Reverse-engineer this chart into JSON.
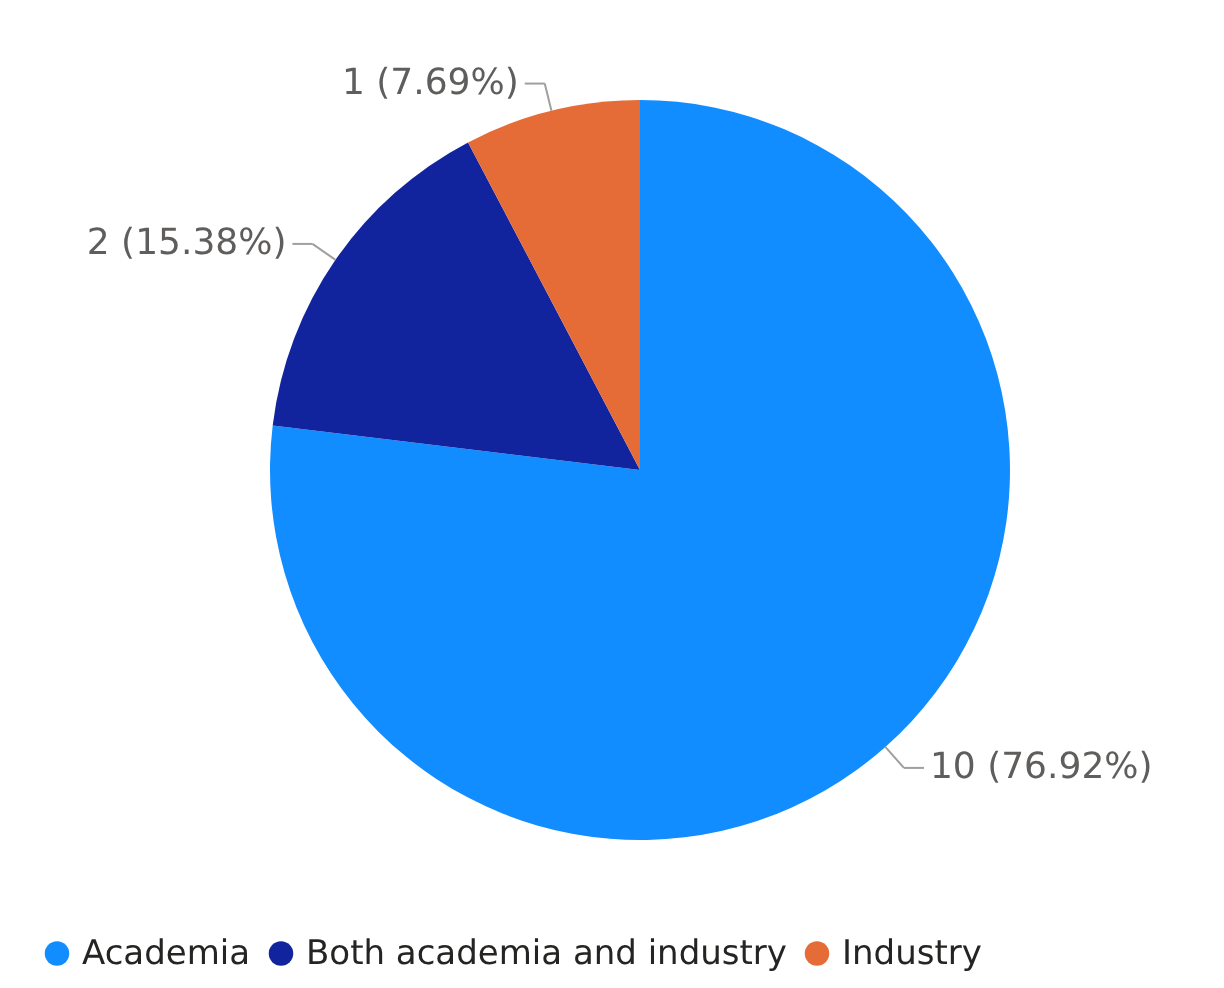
{
  "chart_data": {
    "type": "pie",
    "categories": [
      "Academia",
      "Both academia and industry",
      "Industry"
    ],
    "values": [
      10,
      2,
      1
    ],
    "colors": [
      "#118dff",
      "#12239e",
      "#e66c37"
    ],
    "value_labels": [
      "10 (76.92%)",
      "2 (15.38%)",
      "1 (7.69%)"
    ],
    "legend": "bottom"
  }
}
